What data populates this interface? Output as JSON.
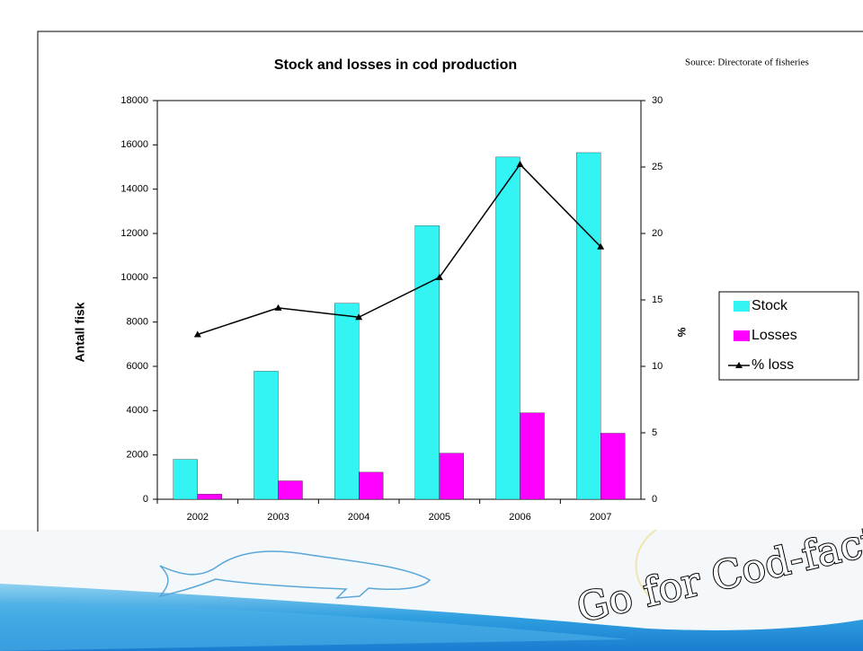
{
  "chart_data": {
    "type": "bar",
    "title": "Stock and losses in cod production",
    "source": "Source: Directorate of fisheries",
    "y_label": "Antall fisk",
    "y2_label": "%",
    "categories": [
      "2002",
      "2003",
      "2004",
      "2005",
      "2006",
      "2007"
    ],
    "series": [
      {
        "name": "Stock",
        "color": "#33f3f3",
        "values": [
          1800,
          5780,
          8850,
          12350,
          15450,
          15650
        ]
      },
      {
        "name": "Losses",
        "color": "#ff00ff",
        "values": [
          230,
          830,
          1220,
          2080,
          3900,
          2980
        ]
      },
      {
        "name": "% loss",
        "color": "#000000",
        "type": "line",
        "axis": "y2",
        "values": [
          12.4,
          14.4,
          13.7,
          16.7,
          25.2,
          19.0
        ]
      }
    ],
    "ylim": [
      0,
      18000
    ],
    "yticks": [
      0,
      2000,
      4000,
      6000,
      8000,
      10000,
      12000,
      14000,
      16000,
      18000
    ],
    "y2lim": [
      0,
      30
    ],
    "y2ticks": [
      0,
      5,
      10,
      15,
      20,
      25,
      30
    ],
    "legend": "right"
  },
  "slogan": "Go for Cod-facts !"
}
